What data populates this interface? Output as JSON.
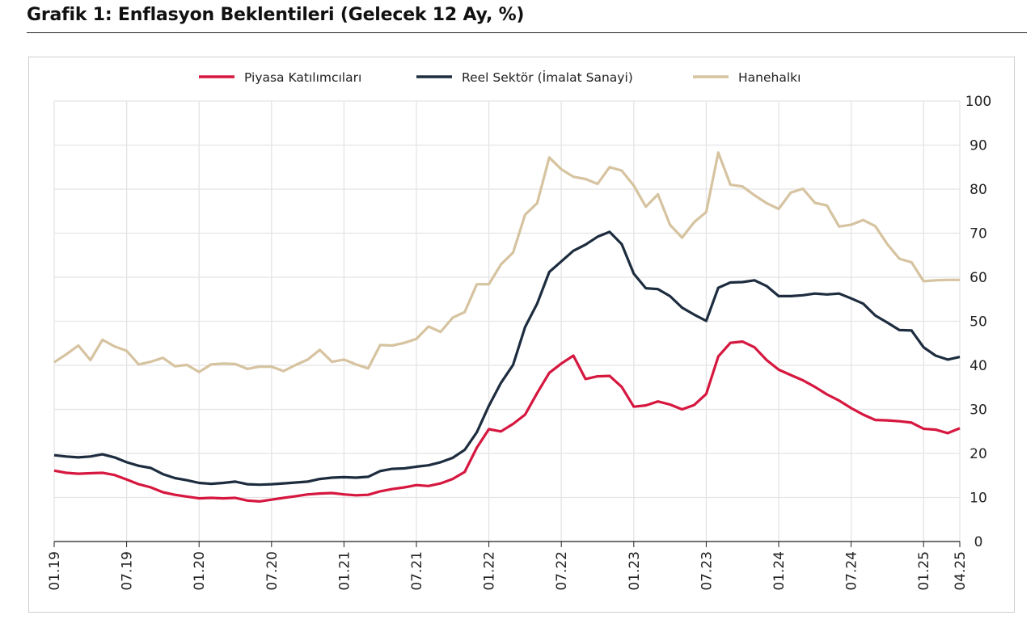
{
  "chart_data": {
    "type": "line",
    "title": "Grafik 1: Enflasyon Beklentileri (Gelecek 12 Ay, %)",
    "xlabel": "",
    "ylabel": "",
    "ylim": [
      0,
      100
    ],
    "yticks": [
      "0",
      "10",
      "20",
      "30",
      "40",
      "50",
      "60",
      "70",
      "80",
      "90",
      "100"
    ],
    "y_axis_side": "right",
    "grid": true,
    "legend_position": "top",
    "x_start": "01.19",
    "x_end": "04.25",
    "x_frequency": "monthly",
    "xticks": [
      "01.19",
      "07.19",
      "01.20",
      "07.20",
      "01.21",
      "07.21",
      "01.22",
      "07.22",
      "01.23",
      "07.23",
      "01.24",
      "07.24",
      "01.25",
      "04.25"
    ],
    "series": [
      {
        "name": "Piyasa Katılımcıları",
        "color": "#d6173f",
        "values": [
          16.1,
          15.6,
          15.4,
          15.5,
          15.6,
          15.1,
          14.1,
          13.0,
          12.3,
          11.2,
          10.6,
          10.2,
          9.8,
          9.9,
          9.8,
          9.9,
          9.3,
          9.1,
          9.5,
          9.9,
          10.3,
          10.7,
          10.9,
          11.0,
          10.7,
          10.5,
          10.6,
          11.4,
          11.9,
          12.3,
          12.8,
          12.6,
          13.2,
          14.2,
          15.8,
          21.3,
          25.5,
          25.0,
          26.7,
          28.8,
          33.7,
          38.3,
          40.4,
          42.2,
          36.9,
          37.5,
          37.6,
          35.1,
          30.6,
          30.9,
          31.8,
          31.1,
          30.0,
          31.0,
          33.5,
          42.0,
          45.1,
          45.4,
          44.1,
          41.2,
          39.0,
          37.8,
          36.6,
          35.1,
          33.4,
          32.0,
          30.3,
          28.8,
          27.6,
          27.5,
          27.3,
          27.0,
          25.6,
          25.4,
          24.6,
          25.7
        ]
      },
      {
        "name": "Reel Sektör (İmalat Sanayi)",
        "color": "#1d2d3f",
        "values": [
          19.6,
          19.3,
          19.1,
          19.3,
          19.8,
          19.1,
          18.0,
          17.2,
          16.7,
          15.3,
          14.4,
          13.9,
          13.3,
          13.1,
          13.3,
          13.6,
          13.0,
          12.9,
          13.0,
          13.2,
          13.4,
          13.6,
          14.2,
          14.5,
          14.6,
          14.5,
          14.7,
          16.0,
          16.5,
          16.6,
          17.0,
          17.3,
          18.0,
          19.0,
          20.8,
          24.8,
          30.8,
          36.0,
          40.1,
          48.7,
          54.0,
          61.2,
          63.6,
          66.0,
          67.4,
          69.2,
          70.3,
          67.5,
          60.8,
          57.5,
          57.3,
          55.7,
          53.1,
          51.5,
          50.1,
          57.6,
          58.8,
          58.9,
          59.3,
          58.0,
          55.7,
          55.7,
          55.9,
          56.3,
          56.1,
          56.3,
          55.2,
          54.0,
          51.3,
          49.7,
          48.0,
          47.9,
          44.1,
          42.2,
          41.3,
          41.9
        ]
      },
      {
        "name": "Hanehalkı",
        "color": "#d6c3a0",
        "values": [
          40.7,
          42.5,
          44.5,
          41.2,
          45.8,
          44.3,
          43.3,
          40.2,
          40.8,
          41.7,
          39.8,
          40.1,
          38.5,
          40.2,
          40.4,
          40.3,
          39.2,
          39.7,
          39.7,
          38.7,
          40.1,
          41.3,
          43.5,
          40.8,
          41.3,
          40.2,
          39.3,
          44.6,
          44.5,
          45.1,
          46.0,
          48.8,
          47.6,
          50.8,
          52.1,
          58.4,
          58.4,
          62.9,
          65.6,
          74.2,
          76.8,
          87.2,
          84.5,
          82.8,
          82.3,
          81.2,
          85.0,
          84.2,
          80.8,
          76.0,
          78.8,
          71.9,
          69.0,
          72.5,
          74.8,
          88.3,
          81.0,
          80.6,
          78.6,
          76.8,
          75.5,
          79.2,
          80.1,
          76.9,
          76.3,
          71.5,
          71.9,
          73.0,
          71.6,
          67.5,
          64.2,
          63.4,
          59.1,
          59.3,
          59.4,
          59.4
        ]
      }
    ]
  }
}
